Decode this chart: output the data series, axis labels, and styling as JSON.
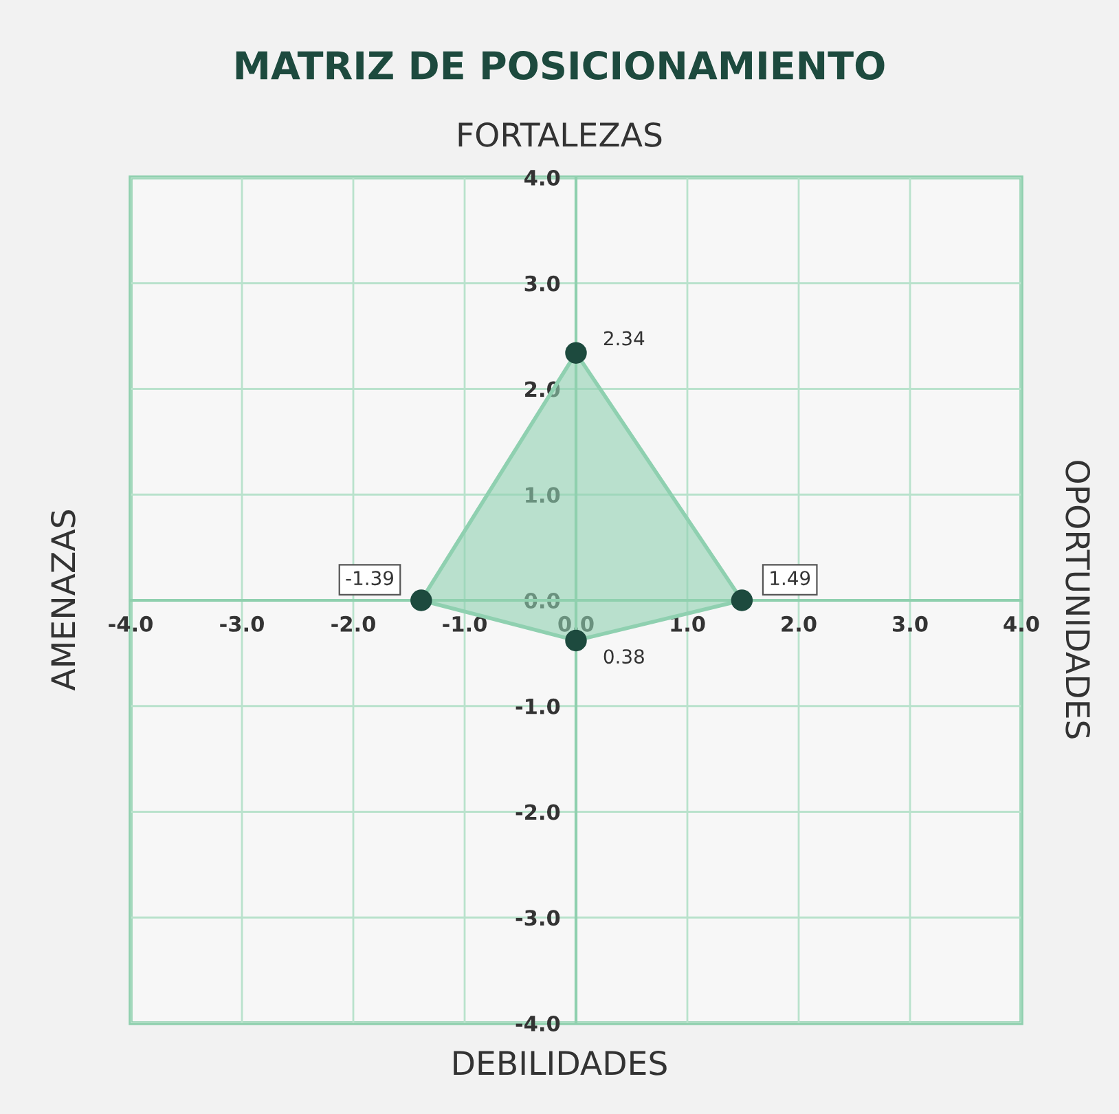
{
  "chart_data": {
    "type": "scatter",
    "title": "MATRIZ DE POSICIONAMIENTO",
    "subtitle": "FORTALEZAS",
    "xlabel": "DEBILIDADES",
    "ylabel": "AMENAZAS",
    "y2label": "OPORTUNIDADES",
    "series": [
      {
        "type": "area",
        "color": "#8fd0b0",
        "x": [
          0,
          1.49,
          0,
          -1.39,
          0
        ],
        "values": [
          2.34,
          0,
          -0.38,
          0,
          2.34
        ]
      },
      {
        "color": "#1d4a3e",
        "marker": "circle",
        "x": [
          0,
          1.49,
          0,
          -1.39
        ],
        "values": [
          2.34,
          0,
          -0.38,
          0
        ]
      }
    ],
    "annotations": [
      {
        "text": "2.34",
        "x": 0,
        "y": 2.34
      },
      {
        "text": "1.49",
        "x": 1.49,
        "y": 0
      },
      {
        "text": "0.38",
        "x": 0,
        "y": -0.38
      },
      {
        "text": "-1.39",
        "x": -1.39,
        "y": 0
      }
    ],
    "xlim": [
      -4,
      4
    ],
    "ylim": [
      -4,
      4
    ],
    "xticks": [
      {
        "value": -4,
        "label": "-4.0"
      },
      {
        "value": -3,
        "label": "-3.0"
      },
      {
        "value": -2,
        "label": "-2.0"
      },
      {
        "value": -1,
        "label": "-1.0"
      },
      {
        "value": 0,
        "label": "0.0"
      },
      {
        "value": 1,
        "label": "1.0"
      },
      {
        "value": 2,
        "label": "2.0"
      },
      {
        "value": 3,
        "label": "3.0"
      },
      {
        "value": 4,
        "label": "4.0"
      }
    ],
    "yticks": [
      {
        "value": -4,
        "label": "-4.0"
      },
      {
        "value": -3,
        "label": "-3.0"
      },
      {
        "value": -2,
        "label": "-2.0"
      },
      {
        "value": -1,
        "label": "-1.0"
      },
      {
        "value": 0,
        "label": "0.0"
      },
      {
        "value": 1,
        "label": "1.0"
      },
      {
        "value": 2,
        "label": "2.0"
      },
      {
        "value": 3,
        "label": "3.0"
      },
      {
        "value": 4,
        "label": "4.0"
      }
    ],
    "grid": true
  }
}
